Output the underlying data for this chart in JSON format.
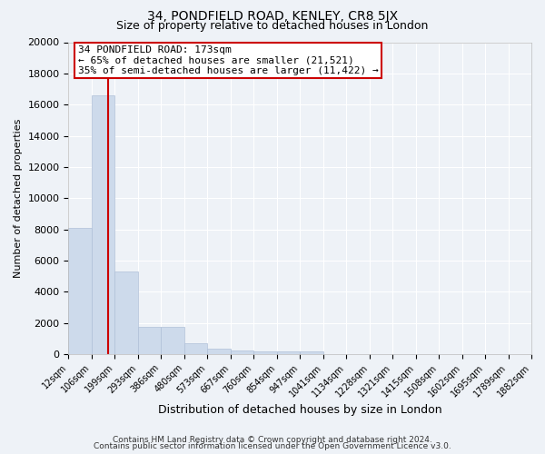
{
  "title": "34, PONDFIELD ROAD, KENLEY, CR8 5JX",
  "subtitle": "Size of property relative to detached houses in London",
  "xlabel": "Distribution of detached houses by size in London",
  "ylabel": "Number of detached properties",
  "bar_values": [
    8100,
    16600,
    5300,
    1750,
    1750,
    700,
    350,
    220,
    200,
    180,
    150,
    0,
    0,
    0,
    0,
    0,
    0,
    0,
    0,
    0
  ],
  "bar_labels": [
    "12sqm",
    "106sqm",
    "199sqm",
    "293sqm",
    "386sqm",
    "480sqm",
    "573sqm",
    "667sqm",
    "760sqm",
    "854sqm",
    "947sqm",
    "1041sqm",
    "1134sqm",
    "1228sqm",
    "1321sqm",
    "1415sqm",
    "1508sqm",
    "1602sqm",
    "1695sqm",
    "1789sqm",
    "1882sqm"
  ],
  "bar_color": "#cddaeb",
  "bar_edge_color": "#b0c0d8",
  "vline_color": "#cc0000",
  "annotation_title": "34 PONDFIELD ROAD: 173sqm",
  "annotation_line1": "← 65% of detached houses are smaller (21,521)",
  "annotation_line2": "35% of semi-detached houses are larger (11,422) →",
  "annotation_box_facecolor": "#ffffff",
  "annotation_box_edgecolor": "#cc0000",
  "ylim": [
    0,
    20000
  ],
  "yticks": [
    0,
    2000,
    4000,
    6000,
    8000,
    10000,
    12000,
    14000,
    16000,
    18000,
    20000
  ],
  "footnote1": "Contains HM Land Registry data © Crown copyright and database right 2024.",
  "footnote2": "Contains public sector information licensed under the Open Government Licence v3.0.",
  "background_color": "#eef2f7",
  "grid_color": "#ffffff",
  "title_fontsize": 10,
  "subtitle_fontsize": 9,
  "ylabel_fontsize": 8,
  "xlabel_fontsize": 9,
  "ytick_fontsize": 8,
  "xtick_fontsize": 7,
  "annotation_fontsize": 8,
  "footnote_fontsize": 6.5
}
